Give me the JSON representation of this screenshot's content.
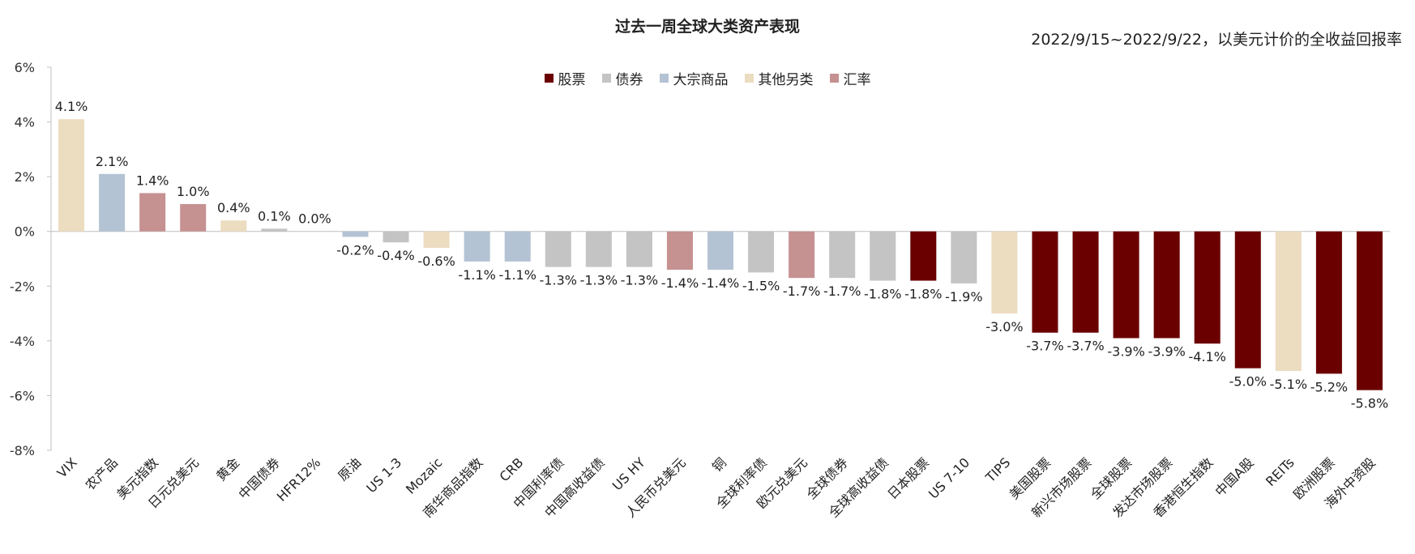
{
  "colors": {
    "股票": "#6b0000",
    "债券": "#c4c4c4",
    "大宗商品": "#b4c3d4",
    "其他另类": "#ecdcc0",
    "汇率": "#c69191"
  },
  "chart_data": {
    "type": "bar",
    "title": "过去一周全球大类资产表现",
    "subtitle": "2022/9/15~2022/9/22，以美元计价的全收益回报率",
    "ylim": [
      -8,
      6
    ],
    "yticks": [
      -8,
      -6,
      -4,
      -2,
      0,
      2,
      4,
      6
    ],
    "ytick_labels": [
      "-8%",
      "-6%",
      "-4%",
      "-2%",
      "0%",
      "2%",
      "4%",
      "6%"
    ],
    "grid": false,
    "legend_position": "top-center",
    "legend": [
      "股票",
      "债券",
      "大宗商品",
      "其他另类",
      "汇率"
    ],
    "categories": [
      "VIX",
      "农产品",
      "美元指数",
      "日元兑美元",
      "黄金",
      "中国债券",
      "HFR12%",
      "原油",
      "US 1-3",
      "Mozaic",
      "南华商品指数",
      "CRB",
      "中国利率债",
      "中国高收益债",
      "US HY",
      "人民币兑美元",
      "铜",
      "全球利率债",
      "欧元兑美元",
      "全球债券",
      "全球高收益债",
      "日本股票",
      "US 7-10",
      "TIPS",
      "美国股票",
      "新兴市场股票",
      "全球股票",
      "发达市场股票",
      "香港恒生指数",
      "中国A股",
      "REITs",
      "欧洲股票",
      "海外中资股"
    ],
    "values": [
      4.1,
      2.1,
      1.4,
      1.0,
      0.4,
      0.1,
      0.0,
      -0.2,
      -0.4,
      -0.6,
      -1.1,
      -1.1,
      -1.3,
      -1.3,
      -1.3,
      -1.4,
      -1.4,
      -1.5,
      -1.7,
      -1.7,
      -1.8,
      -1.8,
      -1.9,
      -3.0,
      -3.7,
      -3.7,
      -3.9,
      -3.9,
      -4.1,
      -5.0,
      -5.1,
      -5.2,
      -5.8
    ],
    "labels": [
      "4.1%",
      "2.1%",
      "1.4%",
      "1.0%",
      "0.4%",
      "0.1%",
      "0.0%",
      "-0.2%",
      "-0.4%",
      "-0.6%",
      "-1.1%",
      "-1.1%",
      "-1.3%",
      "-1.3%",
      "-1.3%",
      "-1.4%",
      "-1.4%",
      "-1.5%",
      "-1.7%",
      "-1.7%",
      "-1.8%",
      "-1.8%",
      "-1.9%",
      "-3.0%",
      "-3.7%",
      "-3.7%",
      "-3.9%",
      "-3.9%",
      "-4.1%",
      "-5.0%",
      "-5.1%",
      "-5.2%",
      "-5.8%"
    ],
    "groups": [
      "其他另类",
      "大宗商品",
      "汇率",
      "汇率",
      "其他另类",
      "债券",
      "其他另类",
      "大宗商品",
      "债券",
      "其他另类",
      "大宗商品",
      "大宗商品",
      "债券",
      "债券",
      "债券",
      "汇率",
      "大宗商品",
      "债券",
      "汇率",
      "债券",
      "债券",
      "股票",
      "债券",
      "其他另类",
      "股票",
      "股票",
      "股票",
      "股票",
      "股票",
      "股票",
      "其他另类",
      "股票",
      "股票"
    ]
  }
}
